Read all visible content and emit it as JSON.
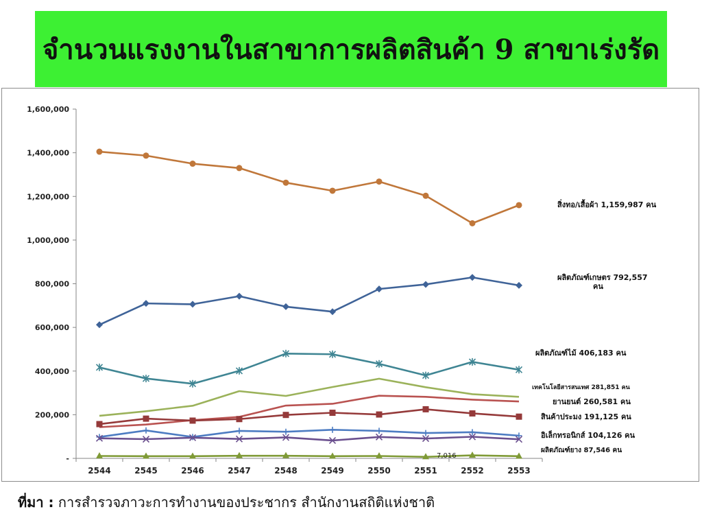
{
  "slide": {
    "title": "จำนวนแรงงานในสาขาการผลิตสินค้า 9 สาขาเร่งรัด",
    "source_label": "ที่มา :",
    "source_text": "การสำรวจภาวะการทำงานของประชากร  สำนักงานสถิติแห่งชาติ"
  },
  "colors": {
    "banner": "#3df033"
  },
  "chart_data": {
    "type": "line",
    "title": "",
    "xlabel": "",
    "ylabel": "",
    "x": [
      "2544",
      "2545",
      "2546",
      "2547",
      "2548",
      "2549",
      "2550",
      "2551",
      "2552",
      "2553"
    ],
    "ylim": [
      0,
      1600000
    ],
    "y_ticks": [
      0,
      200000,
      400000,
      600000,
      800000,
      1000000,
      1200000,
      1400000,
      1600000
    ],
    "y_tick_labels": [
      "-",
      "200,000",
      "400,000",
      "600,000",
      "800,000",
      "1,000,000",
      "1,200,000",
      "1,400,000",
      "1,600,000"
    ],
    "grid": false,
    "legend": "end-of-line labels on the right",
    "series": [
      {
        "label": "สิ่งทอ/เสื้อผ้า 1,159,987 คน",
        "color": "#c0773a",
        "marker": "circle",
        "values": [
          1405000,
          1387000,
          1350000,
          1330000,
          1263000,
          1226000,
          1268000,
          1203000,
          1077000,
          1159987
        ]
      },
      {
        "label": "ผลิตภัณฑ์เกษตร 792,557 คน",
        "color": "#3f6398",
        "marker": "diamond",
        "values": [
          612000,
          710000,
          706000,
          743000,
          695000,
          672000,
          776000,
          797000,
          829000,
          792557
        ]
      },
      {
        "label": "ผลิตภัณฑ์ไม้  406,183 คน",
        "color": "#3f8593",
        "marker": "asterisk",
        "values": [
          417000,
          366000,
          342000,
          401000,
          480000,
          477000,
          433000,
          380000,
          442000,
          406183
        ]
      },
      {
        "label": "เทคโนโลยีสารสนเทศ  281,851 คน",
        "color": "#9bb25a",
        "marker": "none",
        "values": [
          195000,
          216000,
          241000,
          308000,
          286000,
          327000,
          365000,
          326000,
          294000,
          281851
        ]
      },
      {
        "label": "ยานยนต์ 260,581 คน",
        "color": "#b95250",
        "marker": "none",
        "values": [
          143000,
          155000,
          175000,
          190000,
          242000,
          250000,
          287000,
          282000,
          269000,
          260581
        ]
      },
      {
        "label": "สินค้าประมง 191,125 คน",
        "color": "#953a3a",
        "marker": "square",
        "values": [
          157000,
          182000,
          173000,
          180000,
          199000,
          209000,
          201000,
          225000,
          206000,
          191125
        ]
      },
      {
        "label": "อิเล็กทรอนิกส์ 104,126 คน",
        "color": "#4d7cc2",
        "marker": "plus",
        "values": [
          98000,
          128000,
          98000,
          126000,
          122000,
          131000,
          126000,
          116000,
          120000,
          104126
        ]
      },
      {
        "label": "ผลิตภัณฑ์ยาง 87,546 คน",
        "color": "#6a4f8e",
        "marker": "x",
        "values": [
          92000,
          88000,
          95000,
          89000,
          96000,
          82000,
          98000,
          91000,
          99000,
          87546
        ]
      },
      {
        "label": "",
        "color": "#7f9a36",
        "marker": "triangle",
        "values": [
          11000,
          10000,
          10000,
          12000,
          12000,
          10000,
          11000,
          7016,
          14000,
          10000
        ]
      }
    ],
    "annotations": [
      {
        "text": "7,016",
        "x": "2551",
        "series_index": 8
      }
    ]
  }
}
